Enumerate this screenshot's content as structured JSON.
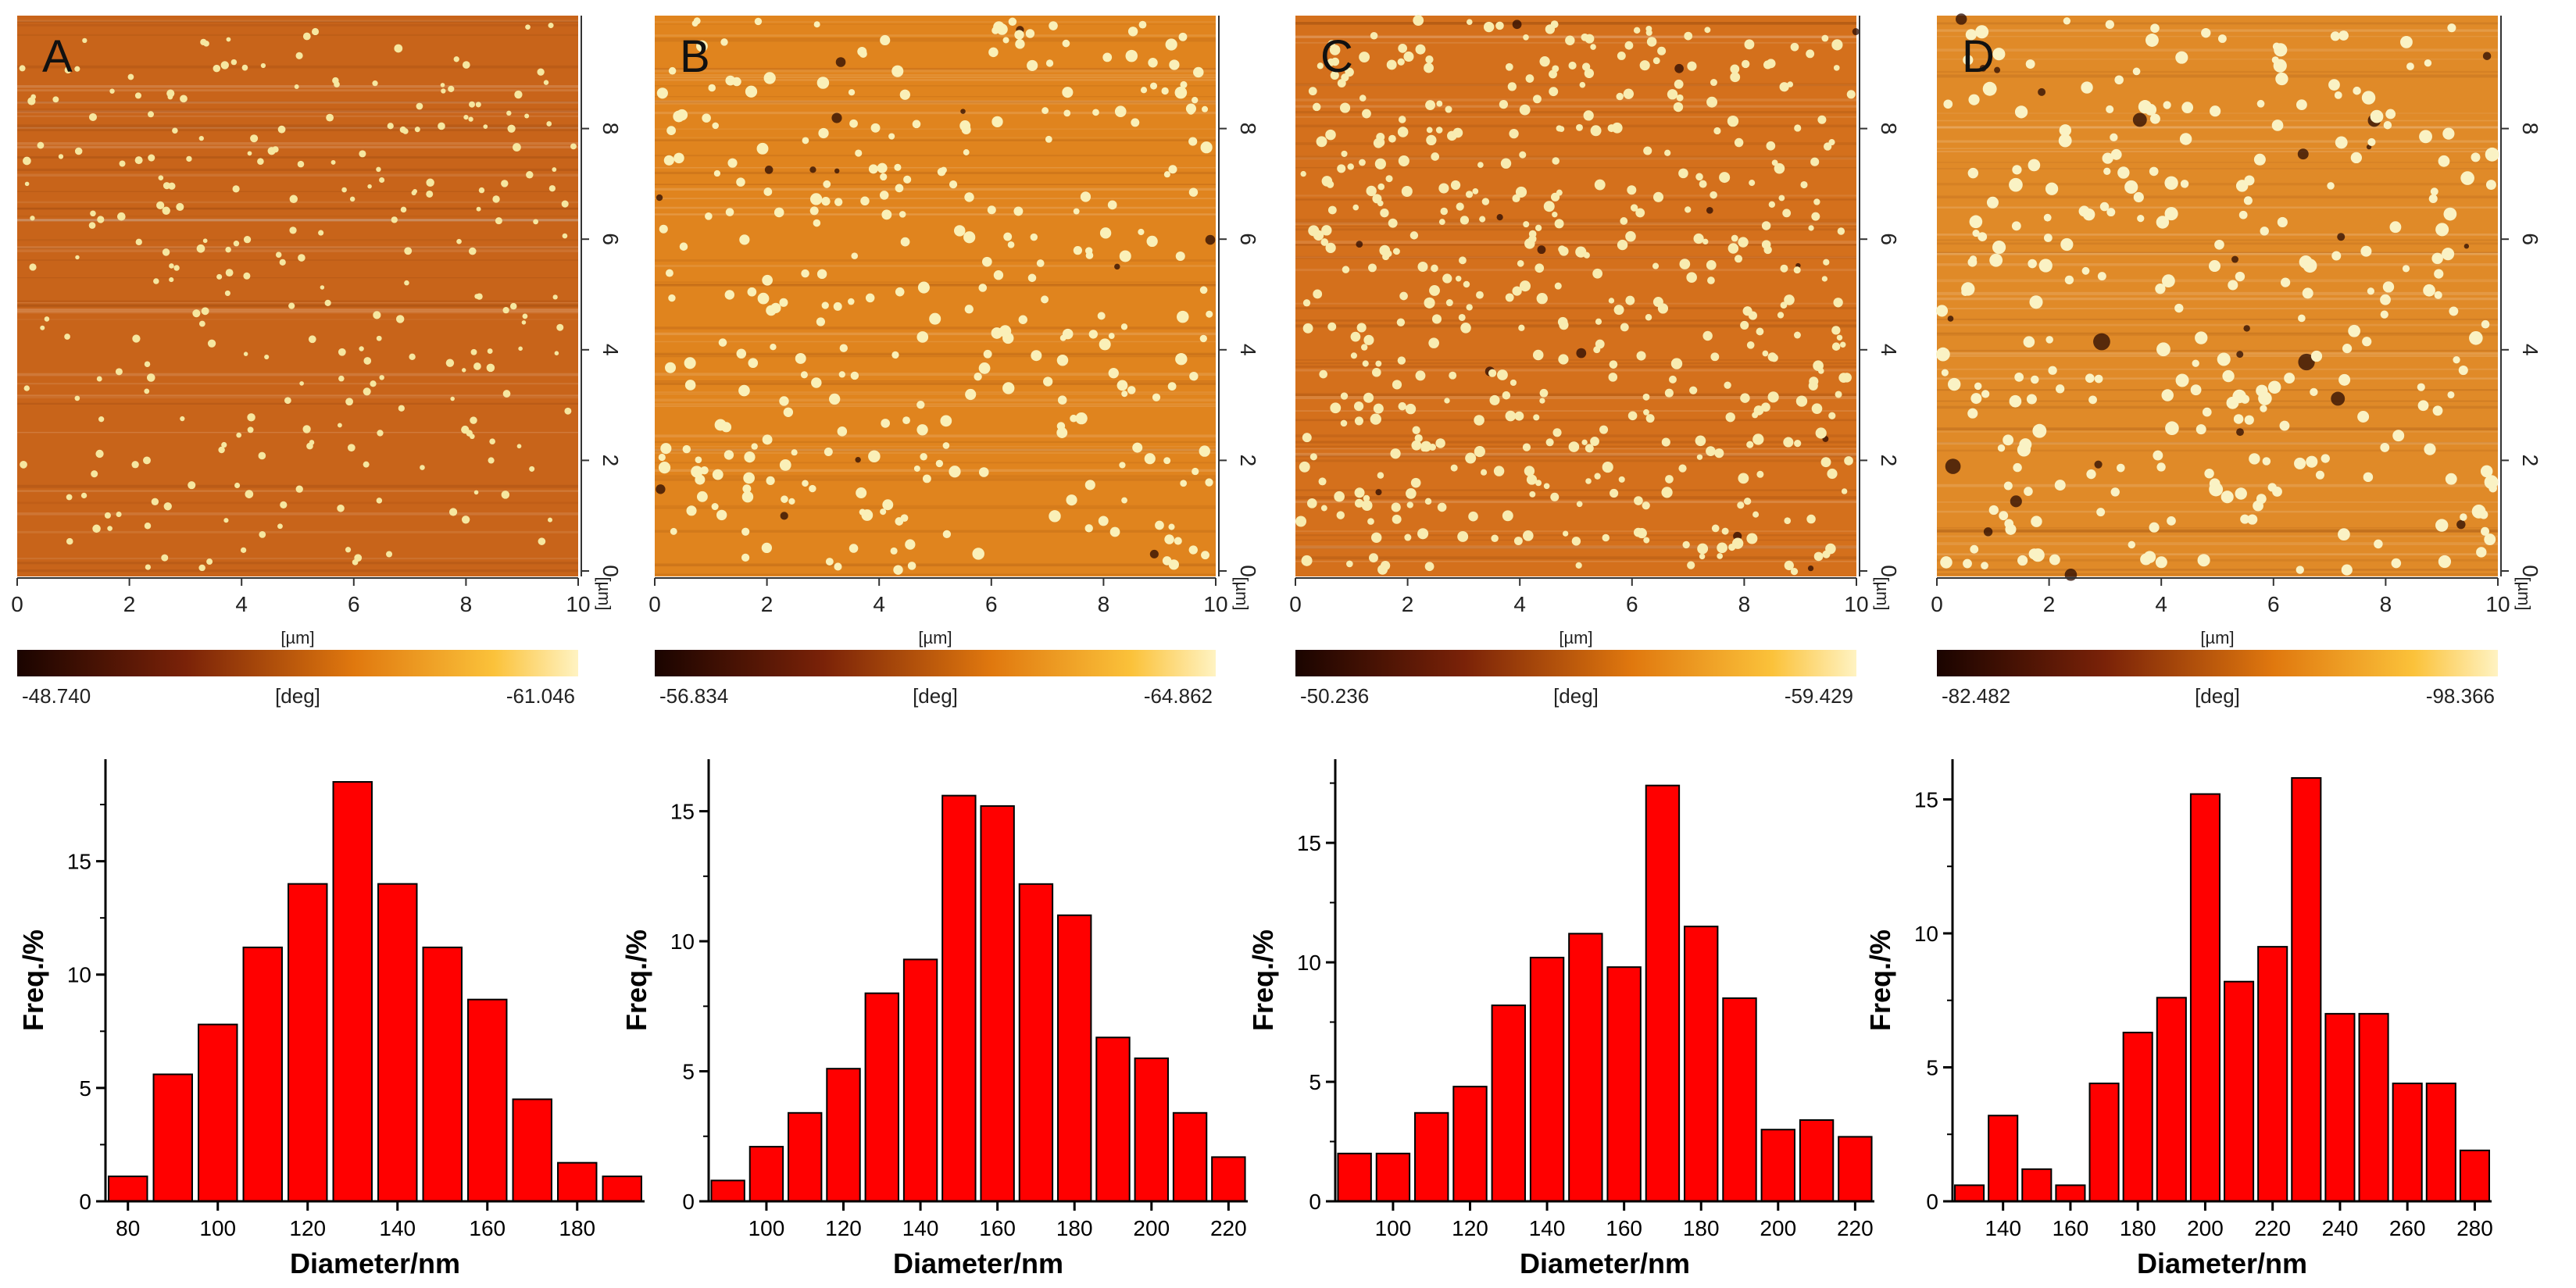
{
  "panels": [
    {
      "letter": "A",
      "afm": {
        "axis_unit": "[µm]",
        "x_ticks": [
          "0",
          "2",
          "4",
          "6",
          "8",
          "10"
        ],
        "y_ticks": [
          "0",
          "2",
          "4",
          "6",
          "8"
        ],
        "colorbar_min": "-48.740",
        "colorbar_max": "-61.046",
        "colorbar_unit": "[deg]",
        "colors": {
          "surface": "#c8641a",
          "particle": "#f6e7a0"
        }
      },
      "chart_data": {
        "type": "bar",
        "categories": [
          80,
          90,
          100,
          110,
          120,
          130,
          140,
          150,
          160,
          170,
          180,
          190
        ],
        "values": [
          1.1,
          5.6,
          7.8,
          11.2,
          14.0,
          18.5,
          14.0,
          11.2,
          8.9,
          4.5,
          1.7,
          1.1
        ],
        "xlabel": "Diameter/nm",
        "ylabel": "Freq./%",
        "xlim": [
          75,
          195
        ],
        "ylim": [
          0,
          19.5
        ],
        "x_ticks": [
          80,
          100,
          120,
          140,
          160,
          180
        ],
        "y_ticks": [
          0,
          5,
          10,
          15
        ]
      }
    },
    {
      "letter": "B",
      "afm": {
        "axis_unit": "[µm]",
        "x_ticks": [
          "0",
          "2",
          "4",
          "6",
          "8",
          "10"
        ],
        "y_ticks": [
          "0",
          "2",
          "4",
          "6",
          "8"
        ],
        "colorbar_min": "-56.834",
        "colorbar_max": "-64.862",
        "colorbar_unit": "[deg]",
        "colors": {
          "surface": "#e0841e",
          "particle": "#faf0b8"
        }
      },
      "chart_data": {
        "type": "bar",
        "categories": [
          90,
          100,
          110,
          120,
          130,
          140,
          150,
          160,
          170,
          180,
          190,
          200,
          210,
          220
        ],
        "values": [
          0.8,
          2.1,
          3.4,
          5.1,
          8.0,
          9.3,
          15.6,
          15.2,
          12.2,
          11.0,
          6.3,
          5.5,
          3.4,
          1.7
        ],
        "xlabel": "Diameter/nm",
        "ylabel": "Freq./%",
        "xlim": [
          85,
          225
        ],
        "ylim": [
          0,
          17
        ],
        "x_ticks": [
          100,
          120,
          140,
          160,
          180,
          200,
          220
        ],
        "y_ticks": [
          0,
          5,
          10,
          15
        ]
      }
    },
    {
      "letter": "C",
      "afm": {
        "axis_unit": "[µm]",
        "x_ticks": [
          "0",
          "2",
          "4",
          "6",
          "8",
          "10"
        ],
        "y_ticks": [
          "0",
          "2",
          "4",
          "6",
          "8"
        ],
        "colorbar_min": "-50.236",
        "colorbar_max": "-59.429",
        "colorbar_unit": "[deg]",
        "colors": {
          "surface": "#d4701c",
          "particle": "#f8ecb0"
        }
      },
      "chart_data": {
        "type": "bar",
        "categories": [
          90,
          100,
          110,
          120,
          130,
          140,
          150,
          160,
          170,
          180,
          190,
          200,
          210,
          220
        ],
        "values": [
          2.0,
          2.0,
          3.7,
          4.8,
          8.2,
          10.2,
          11.2,
          9.8,
          17.4,
          11.5,
          8.5,
          3.0,
          3.4,
          2.7
        ],
        "xlabel": "Diameter/nm",
        "ylabel": "Freq./%",
        "xlim": [
          85,
          225
        ],
        "ylim": [
          0,
          18.5
        ],
        "x_ticks": [
          100,
          120,
          140,
          160,
          180,
          200,
          220
        ],
        "y_ticks": [
          0,
          5,
          10,
          15
        ]
      }
    },
    {
      "letter": "D",
      "afm": {
        "axis_unit": "[µm]",
        "x_ticks": [
          "0",
          "2",
          "4",
          "6",
          "8",
          "10"
        ],
        "y_ticks": [
          "0",
          "2",
          "4",
          "6",
          "8"
        ],
        "colorbar_min": "-82.482",
        "colorbar_max": "-98.366",
        "colorbar_unit": "[deg]",
        "colors": {
          "surface": "#e08a28",
          "particle": "#faf2c4"
        }
      },
      "chart_data": {
        "type": "bar",
        "categories": [
          130,
          140,
          150,
          160,
          170,
          180,
          190,
          200,
          210,
          220,
          230,
          240,
          250,
          260,
          270,
          280
        ],
        "values": [
          0.6,
          3.2,
          1.2,
          0.6,
          4.4,
          6.3,
          7.6,
          15.2,
          8.2,
          9.5,
          15.8,
          7.0,
          7.0,
          4.4,
          4.4,
          1.9
        ],
        "xlabel": "Diameter/nm",
        "ylabel": "Freq./%",
        "xlim": [
          125,
          285
        ],
        "ylim": [
          0,
          16.5
        ],
        "x_ticks": [
          140,
          160,
          180,
          200,
          220,
          240,
          260,
          280
        ],
        "y_ticks": [
          0,
          5,
          10,
          15
        ]
      }
    }
  ],
  "colors": {
    "bar_fill": "#ff0000",
    "bar_stroke": "#000000",
    "axis": "#000000"
  }
}
